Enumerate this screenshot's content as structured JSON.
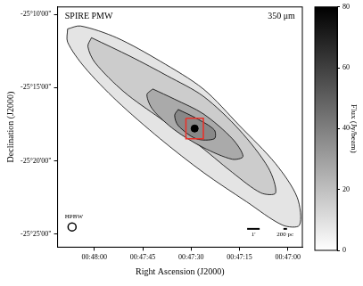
{
  "chart_data": {
    "type": "contour",
    "annotations": [
      {
        "text": "SPIRE PMW"
      },
      {
        "text": "350 μm"
      },
      {
        "text": "HPBW"
      },
      {
        "text": "1'"
      },
      {
        "text": "200 pc"
      }
    ],
    "x_label": "Right Ascension (J2000)",
    "y_label": "Declination (J2000)",
    "xlim": [
      71.4,
      -4.5
    ],
    "xticks": [
      {
        "value": 60,
        "label": "00:48:00"
      },
      {
        "value": 45,
        "label": "00:47:45"
      },
      {
        "value": 30,
        "label": "00:47:30"
      },
      {
        "value": 15,
        "label": "00:47:15"
      },
      {
        "value": 0,
        "label": "00:47:00"
      }
    ],
    "ylim": [
      -1525.9,
      -1509.5
    ],
    "yticks": [
      {
        "value": -1510,
        "label": "-25°10'00\""
      },
      {
        "value": -1515,
        "label": "-25°15'00\""
      },
      {
        "value": -1520,
        "label": "-25°20'00\""
      },
      {
        "value": -1525,
        "label": "-25°25'00\""
      }
    ],
    "grid": false,
    "series": [
      {
        "type": "area",
        "color": "#e4e4e4",
        "x": [
          68.3,
          64.3,
          53.1,
          39.6,
          26.2,
          15.0,
          3.8,
          -2.9,
          -3.6,
          1.6,
          12.8,
          26.2,
          39.6,
          53.1,
          63.1,
          68.3
        ],
        "y": [
          -1511.0,
          -1510.8,
          -1511.6,
          -1513.2,
          -1515.1,
          -1517.6,
          -1520.2,
          -1522.5,
          -1524.4,
          -1524.4,
          -1522.8,
          -1520.8,
          -1518.5,
          -1515.9,
          -1513.6,
          -1511.9
        ]
      },
      {
        "type": "area",
        "color": "#cccccc",
        "x": [
          60.9,
          48.6,
          37.4,
          26.2,
          15.0,
          6.0,
          3.8,
          8.3,
          17.2,
          28.4,
          39.6,
          50.8,
          59.8,
          62.0
        ],
        "y": [
          -1511.6,
          -1512.9,
          -1514.2,
          -1515.6,
          -1517.9,
          -1520.5,
          -1522.2,
          -1522.2,
          -1520.8,
          -1518.8,
          -1517.1,
          -1515.3,
          -1513.3,
          -1512.2
        ]
      },
      {
        "type": "area",
        "color": "#aaaaaa",
        "x": [
          41.9,
          35.1,
          26.2,
          17.2,
          13.9,
          17.2,
          26.2,
          35.1,
          41.9,
          43.7
        ],
        "y": [
          -1515.1,
          -1515.8,
          -1516.8,
          -1518.5,
          -1519.7,
          -1519.9,
          -1519.1,
          -1517.9,
          -1516.5,
          -1515.5
        ]
      },
      {
        "type": "area",
        "color": "#888888",
        "x": [
          34.0,
          28.4,
          22.8,
          22.8,
          28.4,
          34.0,
          35.1
        ],
        "y": [
          -1516.5,
          -1517.1,
          -1517.9,
          -1518.5,
          -1518.5,
          -1517.6,
          -1516.9
        ]
      },
      {
        "type": "scatter",
        "color": "#000000",
        "marker": "circle",
        "x": [
          28.9
        ],
        "y": [
          -1517.8
        ]
      },
      {
        "type": "line",
        "color": "#e8322a",
        "line_style": "solid",
        "x": [
          31.6,
          26.2,
          26.2,
          31.6
        ],
        "y": [
          -1517.1,
          -1517.1,
          -1518.5,
          -1518.5
        ]
      }
    ],
    "colorbar": {
      "label": "Flux (Jy/beam)",
      "range": [
        0,
        80
      ],
      "ticks": [
        0,
        20,
        40,
        60,
        80
      ]
    }
  }
}
